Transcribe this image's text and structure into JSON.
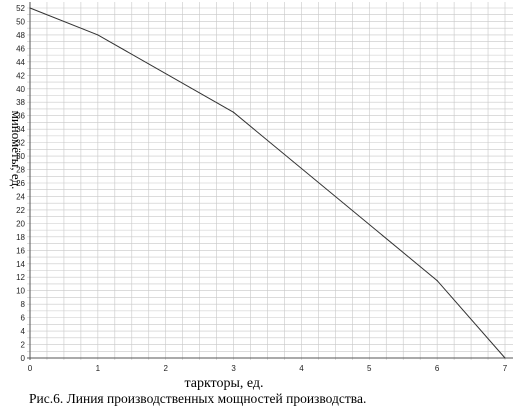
{
  "chart_data": {
    "type": "line",
    "xlabel": "таркторы, ед.",
    "ylabel": "миномёты, ед.",
    "x": [
      0,
      1,
      3,
      6,
      7
    ],
    "y": [
      52,
      48,
      36.5,
      11.5,
      0
    ],
    "xlim": [
      0,
      7
    ],
    "ylim": [
      0,
      52
    ],
    "x_ticks": [
      "0",
      "1",
      "2",
      "3",
      "4",
      "5",
      "6",
      "7"
    ],
    "y_ticks": [
      "0",
      "2",
      "4",
      "6",
      "8",
      "10",
      "12",
      "14",
      "16",
      "18",
      "20",
      "22",
      "24",
      "26",
      "28",
      "30",
      "32",
      "34",
      "36",
      "38",
      "40",
      "42",
      "44",
      "46",
      "48",
      "50",
      "52"
    ],
    "grid": true,
    "line_color": "#333333",
    "grid_color": "#c8c8c8"
  },
  "caption": "Рис.6. Линия производственных мощностей производства."
}
